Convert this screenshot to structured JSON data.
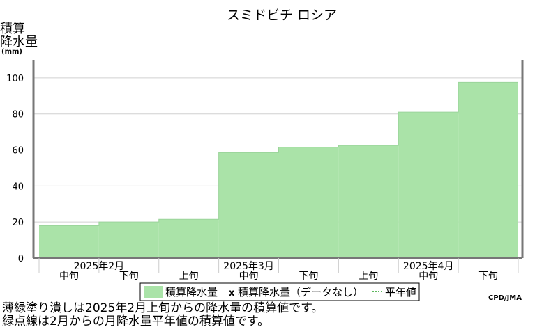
{
  "chart_data": {
    "type": "area",
    "title": "スミドビチ ロシア",
    "ylabel": [
      "積算",
      "降水量"
    ],
    "yunit": "(mm)",
    "ylim": [
      0,
      110
    ],
    "yticks": [
      0,
      20,
      40,
      60,
      80,
      100
    ],
    "grid": true,
    "periods": [
      "中旬",
      "下旬",
      "上旬",
      "中旬",
      "下旬",
      "上旬",
      "中旬",
      "下旬"
    ],
    "months": [
      {
        "label": "2025年2月"
      },
      {
        "label": "2025年3月"
      },
      {
        "label": "2025年4月"
      }
    ],
    "series": [
      {
        "name": "積算降水量",
        "color": "#aae3a8",
        "values": [
          18,
          20,
          21.5,
          58.5,
          61.5,
          62.5,
          81,
          97.5
        ]
      }
    ],
    "legend": {
      "items": [
        "積算降水量",
        "積算降水量（データなし）",
        "平年値"
      ],
      "placement": "bottom"
    },
    "credit": "CPD/JMA",
    "notes": [
      "薄緑塗り潰しは2025年2月上旬からの降水量の積算値です。",
      "緑点線は2月からの月降水量平年値の積算値です。"
    ]
  }
}
